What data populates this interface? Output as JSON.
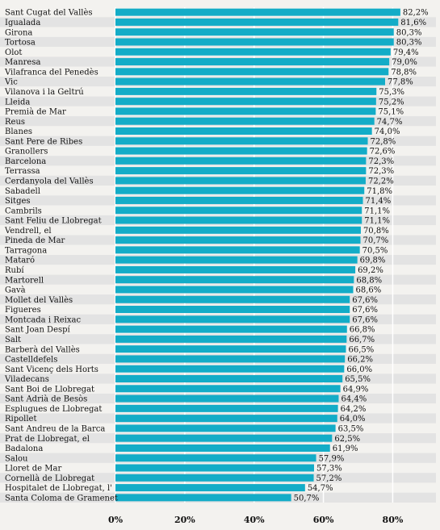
{
  "chart_data": {
    "type": "bar",
    "orientation": "horizontal",
    "title": "",
    "xlabel": "",
    "ylabel": "",
    "xlim": [
      0,
      85
    ],
    "x_ticks": [
      "0%",
      "20%",
      "40%",
      "60%",
      "80%"
    ],
    "x_tick_values": [
      0,
      20,
      40,
      60,
      80
    ],
    "grid": "vertical",
    "colors": {
      "bar": "#13acc7",
      "row_alt": "#e3e3e3",
      "row": "#f3f2ef",
      "grid": "#ffffff"
    },
    "categories": [
      "Sant Cugat del Vallès",
      "Igualada",
      "Girona",
      "Tortosa",
      "Olot",
      "Manresa",
      "Vilafranca del Penedès",
      "Vic",
      "Vilanova i la Geltrú",
      "Lleida",
      "Premià de Mar",
      "Reus",
      "Blanes",
      "Sant Pere de Ribes",
      "Granollers",
      "Barcelona",
      "Terrassa",
      "Cerdanyola del Vallès",
      "Sabadell",
      "Sitges",
      "Cambrils",
      "Sant Feliu de Llobregat",
      "Vendrell, el",
      "Pineda de Mar",
      "Tarragona",
      "Mataró",
      "Rubí",
      "Martorell",
      "Gavà",
      "Mollet del Vallès",
      "Figueres",
      "Montcada i Reixac",
      "Sant Joan Despí",
      "Salt",
      "Barberà del Vallès",
      "Castelldefels",
      "Sant Vicenç dels Horts",
      "Viladecans",
      "Sant Boi de Llobregat",
      "Sant Adrià de Besòs",
      "Esplugues de Llobregat",
      "Ripollet",
      "Sant Andreu de la Barca",
      "Prat de Llobregat, el",
      "Badalona",
      "Salou",
      "Lloret de Mar",
      "Cornellà de Llobregat",
      "Hospitalet de Llobregat, l'",
      "Santa Coloma de Gramenet"
    ],
    "values": [
      82.2,
      81.6,
      80.3,
      80.3,
      79.4,
      79.0,
      78.8,
      77.8,
      75.3,
      75.2,
      75.1,
      74.7,
      74.0,
      72.8,
      72.6,
      72.3,
      72.3,
      72.2,
      71.8,
      71.4,
      71.1,
      71.1,
      70.8,
      70.7,
      70.5,
      69.8,
      69.2,
      68.8,
      68.6,
      67.6,
      67.6,
      67.6,
      66.8,
      66.7,
      66.5,
      66.2,
      66.0,
      65.5,
      64.9,
      64.4,
      64.2,
      64.0,
      63.5,
      62.5,
      61.9,
      57.9,
      57.3,
      57.2,
      54.7,
      50.7
    ],
    "value_labels": [
      "82,2%",
      "81,6%",
      "80,3%",
      "80,3%",
      "79,4%",
      "79,0%",
      "78,8%",
      "77,8%",
      "75,3%",
      "75,2%",
      "75,1%",
      "74,7%",
      "74,0%",
      "72,8%",
      "72,6%",
      "72,3%",
      "72,3%",
      "72,2%",
      "71,8%",
      "71,4%",
      "71,1%",
      "71,1%",
      "70,8%",
      "70,7%",
      "70,5%",
      "69,8%",
      "69,2%",
      "68,8%",
      "68,6%",
      "67,6%",
      "67,6%",
      "67,6%",
      "66,8%",
      "66,7%",
      "66,5%",
      "66,2%",
      "66,0%",
      "65,5%",
      "64,9%",
      "64,4%",
      "64,2%",
      "64,0%",
      "63,5%",
      "62,5%",
      "61,9%",
      "57,9%",
      "57,3%",
      "57,2%",
      "54,7%",
      "50,7%"
    ]
  }
}
